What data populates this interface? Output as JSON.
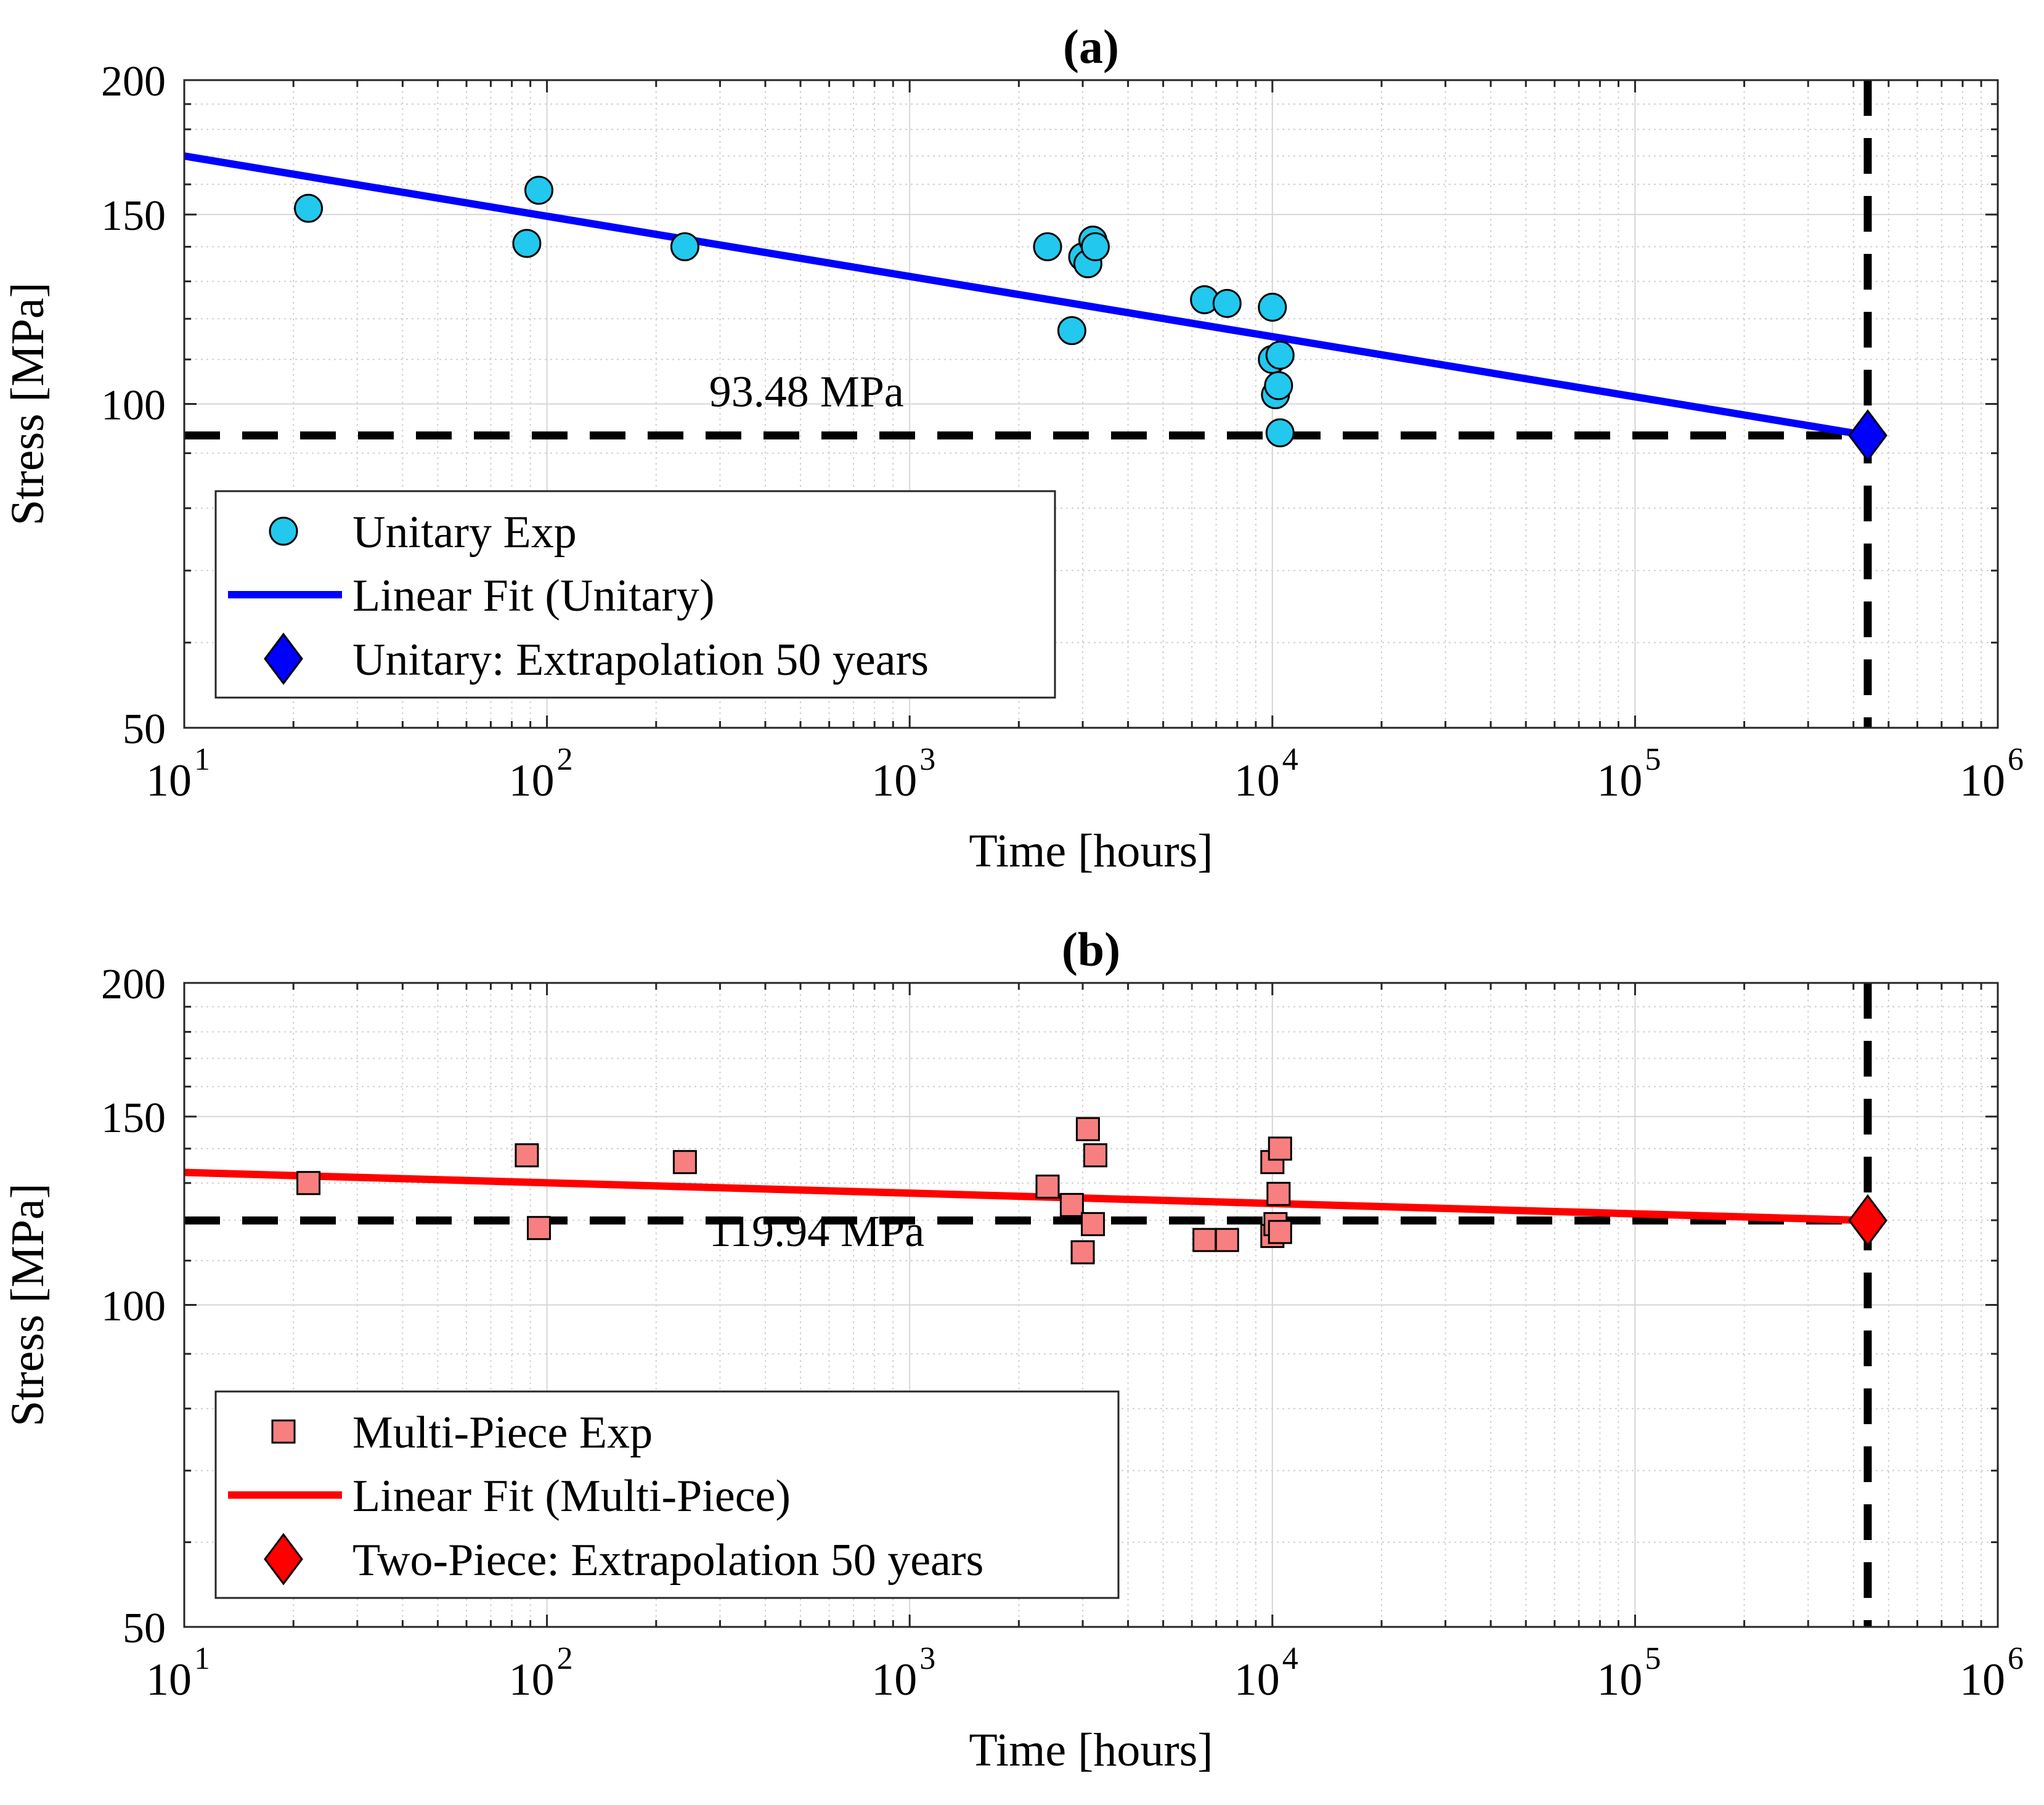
{
  "chart_data": [
    {
      "type": "scatter",
      "title": "(a)",
      "xlabel": "Time [hours]",
      "ylabel": "Stress [MPa]",
      "xscale": "log",
      "yscale": "log",
      "xlim": [
        10,
        1000000
      ],
      "ylim": [
        50,
        200
      ],
      "grid": true,
      "legend_position": "bottom-left",
      "x_ticks": [
        10,
        100,
        1000,
        10000,
        100000,
        1000000
      ],
      "x_tick_labels": [
        {
          "base": "10",
          "exp": "1"
        },
        {
          "base": "10",
          "exp": "2"
        },
        {
          "base": "10",
          "exp": "3"
        },
        {
          "base": "10",
          "exp": "4"
        },
        {
          "base": "10",
          "exp": "5"
        },
        {
          "base": "10",
          "exp": "6"
        }
      ],
      "y_ticks": [
        50,
        100,
        150,
        200
      ],
      "y_tick_labels": [
        "50",
        "100",
        "150",
        "200"
      ],
      "scatter": {
        "name": "Unitary Exp",
        "marker": "circle",
        "color": "#22c8ee",
        "points": [
          {
            "x": 22,
            "y": 152
          },
          {
            "x": 88,
            "y": 141
          },
          {
            "x": 95,
            "y": 158
          },
          {
            "x": 240,
            "y": 140
          },
          {
            "x": 2400,
            "y": 140
          },
          {
            "x": 2800,
            "y": 117
          },
          {
            "x": 3000,
            "y": 137
          },
          {
            "x": 3100,
            "y": 135
          },
          {
            "x": 3200,
            "y": 142
          },
          {
            "x": 3250,
            "y": 140
          },
          {
            "x": 6500,
            "y": 125
          },
          {
            "x": 7500,
            "y": 124
          },
          {
            "x": 10000,
            "y": 123
          },
          {
            "x": 10000,
            "y": 110
          },
          {
            "x": 10200,
            "y": 102
          },
          {
            "x": 10400,
            "y": 104
          },
          {
            "x": 10500,
            "y": 111
          },
          {
            "x": 10500,
            "y": 94
          }
        ]
      },
      "fit": {
        "name": "Linear Fit (Unitary)",
        "color": "#0000ff",
        "x": [
          10,
          438000
        ],
        "y": [
          170,
          93.48
        ]
      },
      "extrapolation": {
        "name": "Unitary: Extrapolation 50 years",
        "marker": "diamond",
        "color": "#0000ff",
        "x": 438000,
        "y": 93.48
      },
      "hline": {
        "y": 93.48,
        "x_from": 10,
        "x_to": 438000
      },
      "vline": {
        "x": 438000
      },
      "annotation": {
        "text": "93.48 MPa",
        "x": 280,
        "y": 99.5
      }
    },
    {
      "type": "scatter",
      "title": "(b)",
      "xlabel": "Time [hours]",
      "ylabel": "Stress [MPa]",
      "xscale": "log",
      "yscale": "log",
      "xlim": [
        10,
        1000000
      ],
      "ylim": [
        50,
        200
      ],
      "grid": true,
      "legend_position": "bottom-left",
      "x_ticks": [
        10,
        100,
        1000,
        10000,
        100000,
        1000000
      ],
      "x_tick_labels": [
        {
          "base": "10",
          "exp": "1"
        },
        {
          "base": "10",
          "exp": "2"
        },
        {
          "base": "10",
          "exp": "3"
        },
        {
          "base": "10",
          "exp": "4"
        },
        {
          "base": "10",
          "exp": "5"
        },
        {
          "base": "10",
          "exp": "6"
        }
      ],
      "y_ticks": [
        50,
        100,
        150,
        200
      ],
      "y_tick_labels": [
        "50",
        "100",
        "150",
        "200"
      ],
      "scatter": {
        "name": "Multi-Piece Exp",
        "marker": "square",
        "color": "#f87f7f",
        "points": [
          {
            "x": 22,
            "y": 130
          },
          {
            "x": 88,
            "y": 138
          },
          {
            "x": 95,
            "y": 118
          },
          {
            "x": 240,
            "y": 136
          },
          {
            "x": 2400,
            "y": 129
          },
          {
            "x": 2800,
            "y": 124
          },
          {
            "x": 3000,
            "y": 112
          },
          {
            "x": 3100,
            "y": 146
          },
          {
            "x": 3200,
            "y": 119
          },
          {
            "x": 3250,
            "y": 138
          },
          {
            "x": 6500,
            "y": 115
          },
          {
            "x": 7500,
            "y": 115
          },
          {
            "x": 10000,
            "y": 136
          },
          {
            "x": 10000,
            "y": 116
          },
          {
            "x": 10200,
            "y": 119
          },
          {
            "x": 10400,
            "y": 127
          },
          {
            "x": 10500,
            "y": 140
          },
          {
            "x": 10500,
            "y": 117
          }
        ]
      },
      "fit": {
        "name": "Linear Fit (Multi-Piece)",
        "color": "#ff0000",
        "x": [
          10,
          438000
        ],
        "y": [
          133,
          119.94
        ]
      },
      "extrapolation": {
        "name": "Two-Piece: Extrapolation 50 years",
        "marker": "diamond",
        "color": "#ff0000",
        "x": 438000,
        "y": 119.94
      },
      "hline": {
        "y": 119.94,
        "x_from": 10,
        "x_to": 438000
      },
      "vline": {
        "x": 438000
      },
      "annotation": {
        "text": "119.94 MPa",
        "x": 280,
        "y": 113.5
      }
    }
  ]
}
